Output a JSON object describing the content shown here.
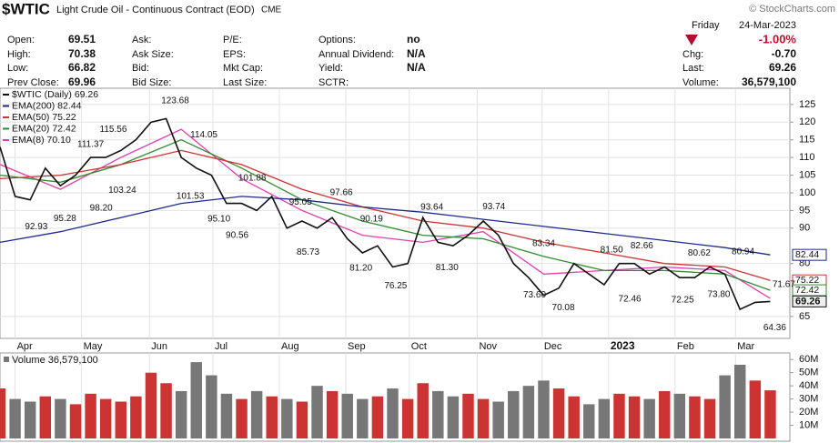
{
  "header": {
    "symbol": "$WTIC",
    "description": "Light Crude Oil - Continuous Contract (EOD)",
    "exchange": "CME",
    "copyright": "© StockCharts.com",
    "day": "Friday",
    "date": "24-Mar-2023",
    "change_pct": "-1.00%",
    "quote": [
      [
        [
          "Open:",
          "69.51"
        ],
        [
          "High:",
          "70.38"
        ],
        [
          "Low:",
          "66.82"
        ],
        [
          "Prev Close:",
          "69.96"
        ]
      ],
      [
        [
          "Ask:"
        ],
        [
          "Ask Size:"
        ],
        [
          "Bid:"
        ],
        [
          "Bid Size:"
        ]
      ],
      [
        [
          "P/E:"
        ],
        [
          "EPS:"
        ],
        [
          "Mkt Cap:"
        ],
        [
          "Last Size:"
        ]
      ],
      [
        [
          "Options:",
          "no"
        ],
        [
          "Annual Dividend:",
          "N/A"
        ],
        [
          "Yield:",
          "N/A"
        ],
        [
          "SCTR:"
        ]
      ]
    ],
    "right": [
      [
        "Chg:",
        "-0.70"
      ],
      [
        "Last:",
        "69.26"
      ],
      [
        "Volume:",
        "36,579,100"
      ]
    ]
  },
  "chart_data": {
    "type": "line",
    "xlim": [
      0,
      52.3
    ],
    "ylim": [
      58.8,
      129.6
    ],
    "yticks": [
      65,
      80,
      90,
      95,
      100,
      105,
      110,
      115,
      120,
      125
    ],
    "grid": true,
    "xticks": [
      {
        "value": 1,
        "label": "Apr"
      },
      {
        "value": 5.4,
        "label": "May"
      },
      {
        "value": 9.9,
        "label": "Jun"
      },
      {
        "value": 14.1,
        "label": "Jul"
      },
      {
        "value": 18.5,
        "label": "Aug"
      },
      {
        "value": 22.9,
        "label": "Sep"
      },
      {
        "value": 27.1,
        "label": "Oct"
      },
      {
        "value": 31.6,
        "label": "Nov"
      },
      {
        "value": 35.9,
        "label": "Dec"
      },
      {
        "value": 40.3,
        "label": "2023"
      },
      {
        "value": 44.7,
        "label": "Feb"
      },
      {
        "value": 48.7,
        "label": "Mar"
      }
    ],
    "series": [
      {
        "name": "$WTIC (Daily) 69.26",
        "color": "#111111",
        "x": [
          0,
          1,
          2,
          3,
          4,
          5,
          6,
          7,
          8,
          9,
          10,
          11,
          12,
          13,
          14,
          15,
          16,
          17,
          18,
          19,
          20,
          21,
          22,
          23,
          24,
          25,
          26,
          27,
          28,
          29,
          30,
          31,
          32,
          33,
          34,
          35,
          36,
          37,
          38,
          39,
          40,
          41,
          42,
          43,
          44,
          45,
          46,
          47,
          48,
          49,
          50,
          51
        ],
        "values": [
          113,
          99,
          98,
          107,
          102,
          105,
          110,
          110,
          112,
          115,
          120,
          121,
          110,
          107,
          105,
          97,
          97,
          95,
          99,
          90,
          92,
          90,
          93,
          87,
          83,
          85,
          79,
          80,
          93,
          86,
          85,
          88,
          92,
          88,
          80,
          76,
          71,
          73,
          80,
          77,
          74,
          80,
          80,
          77,
          79,
          76,
          76,
          79,
          77,
          67,
          69,
          69.26
        ]
      },
      {
        "name": "EMA(200) 82.44",
        "color": "#1f2a8c",
        "x": [
          0,
          4,
          8,
          12,
          16,
          20,
          24,
          28,
          32,
          36,
          40,
          44,
          48,
          51
        ],
        "values": [
          86,
          89,
          93,
          97,
          99,
          98,
          96,
          94.5,
          92.5,
          90.5,
          88.5,
          86.5,
          84.5,
          82.44
        ]
      },
      {
        "name": "EMA(50) 75.22",
        "color": "#cc3333",
        "x": [
          0,
          4,
          8,
          12,
          16,
          20,
          24,
          28,
          32,
          36,
          40,
          44,
          48,
          51
        ],
        "values": [
          104,
          105,
          108,
          112,
          108,
          101,
          96,
          92,
          90,
          86,
          83,
          80,
          79,
          75.22
        ]
      },
      {
        "name": "EMA(20) 72.42",
        "color": "#2e8b2e",
        "x": [
          0,
          4,
          8,
          12,
          16,
          20,
          24,
          28,
          32,
          36,
          40,
          44,
          48,
          51
        ],
        "values": [
          105,
          103,
          108,
          115,
          107,
          98,
          92,
          88,
          87,
          82,
          78,
          78,
          77,
          72.42
        ]
      },
      {
        "name": "EMA(8) 70.10",
        "color": "#e040b0",
        "x": [
          0,
          4,
          8,
          12,
          16,
          20,
          24,
          28,
          32,
          36,
          40,
          44,
          48,
          51
        ],
        "values": [
          108,
          101,
          110,
          118,
          104,
          95,
          88,
          86,
          89,
          77,
          78,
          79,
          78,
          70.1
        ]
      }
    ],
    "annotations": [
      {
        "x": 2.4,
        "value": 92.93
      },
      {
        "x": 4.3,
        "value": 95.28
      },
      {
        "x": 6,
        "value": 111.37
      },
      {
        "x": 6.7,
        "value": 98.2,
        "label": "98.20"
      },
      {
        "x": 7.5,
        "value": 115.56
      },
      {
        "x": 8.1,
        "value": 103.24
      },
      {
        "x": 11.6,
        "value": 123.68
      },
      {
        "x": 12.6,
        "value": 101.53
      },
      {
        "x": 13.5,
        "value": 114.05
      },
      {
        "x": 14.5,
        "value": 95.1,
        "label": "95.10"
      },
      {
        "x": 15.7,
        "value": 90.56
      },
      {
        "x": 16.7,
        "value": 101.88
      },
      {
        "x": 19.9,
        "value": 95.05
      },
      {
        "x": 20.4,
        "value": 85.73
      },
      {
        "x": 22.6,
        "value": 97.66
      },
      {
        "x": 23.9,
        "value": 81.2,
        "label": "81.20"
      },
      {
        "x": 24.6,
        "value": 90.19
      },
      {
        "x": 26.2,
        "value": 76.25
      },
      {
        "x": 28.6,
        "value": 93.64
      },
      {
        "x": 29.6,
        "value": 81.3,
        "label": "81.30"
      },
      {
        "x": 32.7,
        "value": 93.74
      },
      {
        "x": 35.4,
        "value": 73.6,
        "label": "73.60"
      },
      {
        "x": 36,
        "value": 83.34
      },
      {
        "x": 37.3,
        "value": 70.08
      },
      {
        "x": 40.5,
        "value": 81.5,
        "label": "81.50"
      },
      {
        "x": 41.7,
        "value": 72.46
      },
      {
        "x": 42.5,
        "value": 82.66
      },
      {
        "x": 45.2,
        "value": 72.25
      },
      {
        "x": 46.3,
        "value": 80.62
      },
      {
        "x": 47.6,
        "value": 73.8,
        "label": "73.80"
      },
      {
        "x": 49.2,
        "value": 80.94
      },
      {
        "x": 51.3,
        "value": 64.36
      },
      {
        "x": 51.9,
        "value": 71.67
      }
    ],
    "volume": {
      "name": "Volume 36,579,100",
      "color": "#cc3333",
      "ylim": [
        0,
        65000000
      ],
      "yticks": [
        {
          "value": 10000000,
          "label": "10M"
        },
        {
          "value": 20000000,
          "label": "20M"
        },
        {
          "value": 30000000,
          "label": "30M"
        },
        {
          "value": 40000000,
          "label": "40M"
        },
        {
          "value": 50000000,
          "label": "50M"
        },
        {
          "value": 60000000,
          "label": "60M"
        }
      ],
      "values": [
        38000000,
        30000000,
        28000000,
        32000000,
        30000000,
        26000000,
        34000000,
        30000000,
        28000000,
        32000000,
        50000000,
        42000000,
        36000000,
        58000000,
        48000000,
        34000000,
        30000000,
        36000000,
        32000000,
        30000000,
        28000000,
        40000000,
        36000000,
        34000000,
        30000000,
        32000000,
        38000000,
        30000000,
        42000000,
        36000000,
        32000000,
        34000000,
        30000000,
        28000000,
        36000000,
        40000000,
        44000000,
        38000000,
        32000000,
        26000000,
        30000000,
        34000000,
        32000000,
        30000000,
        36000000,
        34000000,
        32000000,
        30000000,
        48000000,
        56000000,
        44000000,
        36579100
      ]
    }
  }
}
